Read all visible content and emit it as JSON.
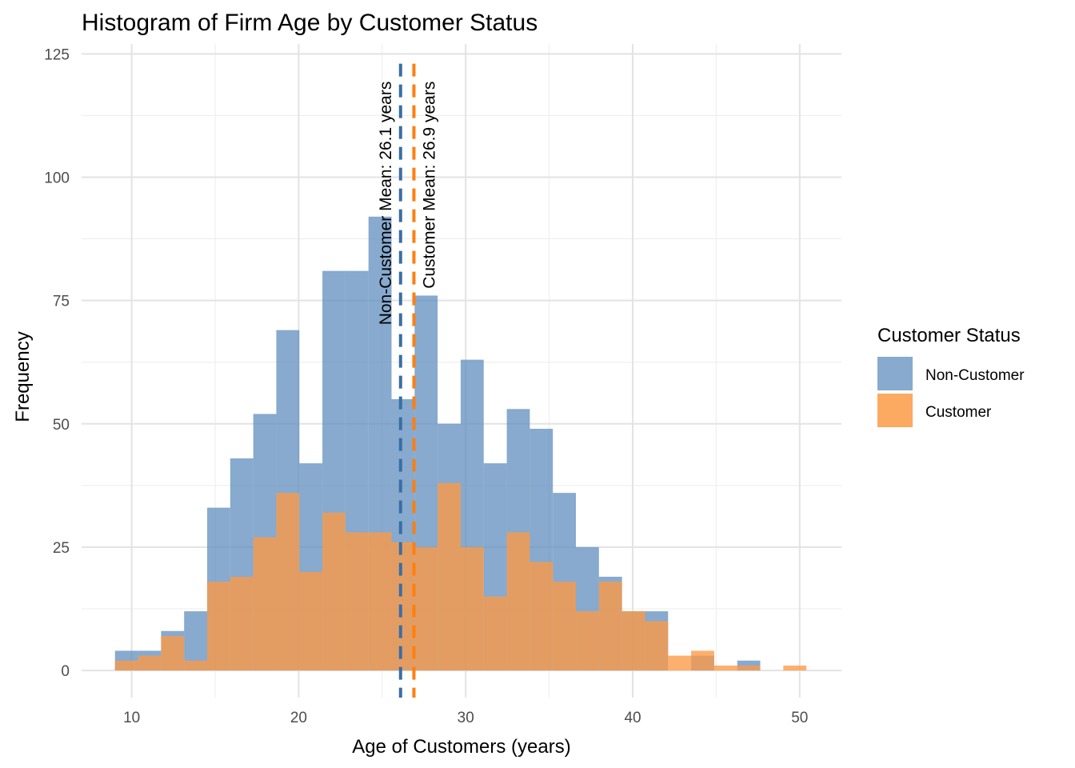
{
  "chart_data": {
    "type": "bar",
    "title": "Histogram of Firm Age by Customer Status",
    "xlabel": "Age of Customers (years)",
    "ylabel": "Frequency",
    "xlim": [
      7,
      52.5
    ],
    "ylim": [
      -5.5,
      127
    ],
    "x_ticks": [
      10,
      20,
      30,
      40,
      50
    ],
    "y_ticks": [
      0,
      25,
      50,
      75,
      100,
      125
    ],
    "grid": true,
    "legend": {
      "title": "Customer Status",
      "position": "right",
      "entries": [
        "Non-Customer",
        "Customer"
      ]
    },
    "bin_width": 1.38,
    "bin_starts": [
      9.0,
      10.38,
      11.76,
      13.14,
      14.52,
      15.9,
      17.28,
      18.66,
      20.04,
      21.42,
      22.8,
      24.18,
      25.56,
      26.94,
      28.32,
      29.7,
      31.08,
      32.46,
      33.84,
      35.22,
      36.6,
      37.98,
      39.36,
      40.74,
      42.12,
      43.5,
      44.88,
      46.26,
      47.64,
      49.02
    ],
    "series": [
      {
        "name": "Non-Customer",
        "color": "#5f8dbd",
        "values": [
          4,
          4,
          8,
          12,
          33,
          43,
          52,
          69,
          42,
          81,
          81,
          92,
          55,
          76,
          50,
          63,
          42,
          53,
          49,
          36,
          25,
          19,
          12,
          12,
          0,
          3,
          0,
          2,
          0,
          0
        ]
      },
      {
        "name": "Customer",
        "color": "#fc9a45",
        "values": [
          2,
          3,
          7,
          2,
          18,
          19,
          27,
          36,
          20,
          32,
          28,
          28,
          26,
          25,
          38,
          25,
          15,
          28,
          22,
          18,
          12,
          18,
          12,
          10,
          3,
          4,
          1,
          1,
          0,
          1
        ]
      }
    ],
    "mean_lines": [
      {
        "value": 26.1,
        "color": "#3a6ea5",
        "label": "Non-Customer Mean: 26.1 years"
      },
      {
        "value": 26.9,
        "color": "#ff7f0e",
        "label": "Customer Mean: 26.9 years"
      }
    ]
  }
}
